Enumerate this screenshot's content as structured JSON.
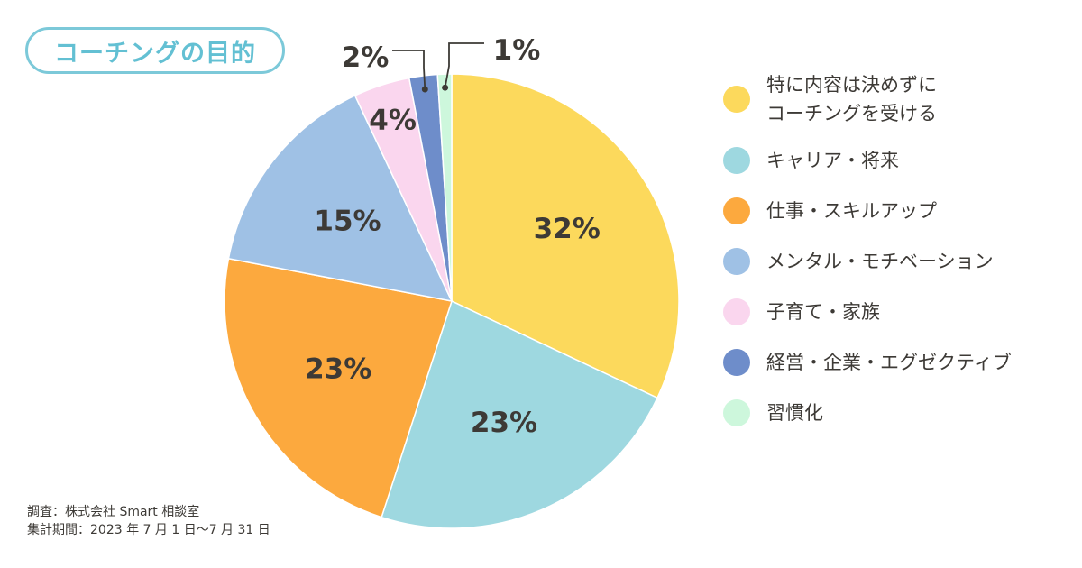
{
  "title": "コーチングの目的",
  "chart_data": {
    "type": "pie",
    "title": "コーチングの目的",
    "categories": [
      "特に内容は決めずにコーチングを受ける",
      "キャリア・将来",
      "仕事・スキルアップ",
      "メンタル・モチベーション",
      "子育て・家族",
      "経営・企業・エグゼクティブ",
      "習慣化"
    ],
    "values": [
      32,
      23,
      23,
      15,
      4,
      2,
      1
    ],
    "labels": [
      "32%",
      "23%",
      "23%",
      "15%",
      "4%",
      "2%",
      "1%"
    ],
    "colors": [
      "#fcd95c",
      "#9ed8e0",
      "#fca93e",
      "#9fc1e5",
      "#fad6ee",
      "#6e8dca",
      "#cdf7dc"
    ],
    "legend_position": "right"
  },
  "legend": [
    {
      "lines": [
        "特に内容は決めずに",
        "コーチングを受ける"
      ],
      "color": "#fcd95c"
    },
    {
      "lines": [
        "キャリア・将来"
      ],
      "color": "#9ed8e0"
    },
    {
      "lines": [
        "仕事・スキルアップ"
      ],
      "color": "#fca93e"
    },
    {
      "lines": [
        "メンタル・モチベーション"
      ],
      "color": "#9fc1e5"
    },
    {
      "lines": [
        "子育て・家族"
      ],
      "color": "#fad6ee"
    },
    {
      "lines": [
        "経営・企業・エグゼクティブ"
      ],
      "color": "#6e8dca"
    },
    {
      "lines": [
        "習慣化"
      ],
      "color": "#cdf7dc"
    }
  ],
  "footnote": {
    "survey": "調査：株式会社 Smart 相談室",
    "period": "集計期間：2023 年 7 月 1 日〜7 月 31 日"
  },
  "colors": {
    "accent": "#63c0d3",
    "text": "#3d3a36"
  }
}
